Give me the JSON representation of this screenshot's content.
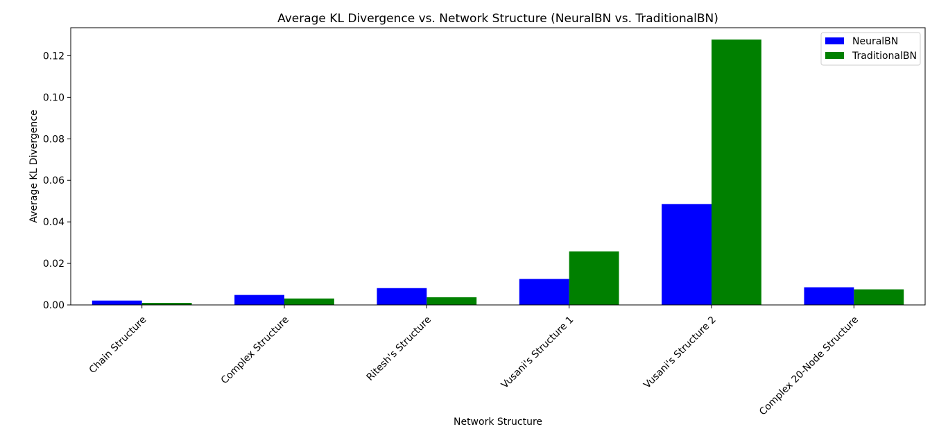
{
  "chart_data": {
    "type": "bar",
    "title": "Average KL Divergence vs. Network Structure (NeuralBN vs. TraditionalBN)",
    "xlabel": "Network Structure",
    "ylabel": "Average KL Divergence",
    "categories": [
      "Chain Structure",
      "Complex Structure",
      "Ritesh's Structure",
      "Vusani's Structure 1",
      "Vusani's Structure 2",
      "Complex 20-Node Structure"
    ],
    "series": [
      {
        "name": "NeuralBN",
        "color": "#0000ff",
        "values": [
          0.0021,
          0.0048,
          0.0081,
          0.0125,
          0.0486,
          0.0085
        ]
      },
      {
        "name": "TraditionalBN",
        "color": "#008000",
        "values": [
          0.001,
          0.0031,
          0.0037,
          0.0258,
          0.1278,
          0.0075
        ]
      }
    ],
    "ylim": [
      0,
      0.1335
    ],
    "yticks": [
      "0.00",
      "0.02",
      "0.04",
      "0.06",
      "0.08",
      "0.10",
      "0.12"
    ],
    "legend_position": "top-right",
    "grid": false
  }
}
